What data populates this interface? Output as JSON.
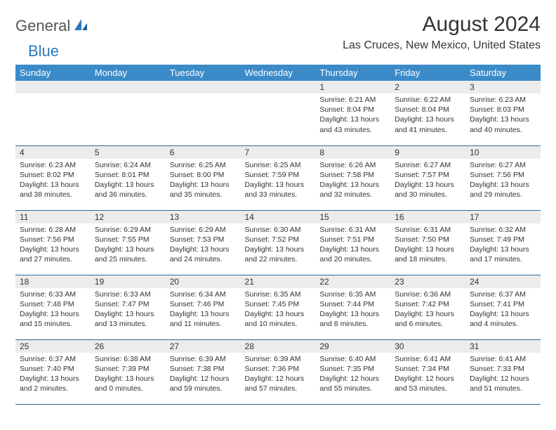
{
  "logo": {
    "part1": "General",
    "part2": "Blue"
  },
  "title": "August 2024",
  "location": "Las Cruces, New Mexico, United States",
  "colors": {
    "header_bg": "#3b8bc9",
    "header_text": "#ffffff",
    "daynum_bg": "#ececec",
    "cell_border": "#2a6aa0",
    "text": "#333333",
    "logo_gray": "#555555",
    "logo_blue": "#2a7abf"
  },
  "daysOfWeek": [
    "Sunday",
    "Monday",
    "Tuesday",
    "Wednesday",
    "Thursday",
    "Friday",
    "Saturday"
  ],
  "weeks": [
    [
      {
        "empty": true
      },
      {
        "empty": true
      },
      {
        "empty": true
      },
      {
        "empty": true
      },
      {
        "num": "1",
        "sunrise": "Sunrise: 6:21 AM",
        "sunset": "Sunset: 8:04 PM",
        "day1": "Daylight: 13 hours",
        "day2": "and 43 minutes."
      },
      {
        "num": "2",
        "sunrise": "Sunrise: 6:22 AM",
        "sunset": "Sunset: 8:04 PM",
        "day1": "Daylight: 13 hours",
        "day2": "and 41 minutes."
      },
      {
        "num": "3",
        "sunrise": "Sunrise: 6:23 AM",
        "sunset": "Sunset: 8:03 PM",
        "day1": "Daylight: 13 hours",
        "day2": "and 40 minutes."
      }
    ],
    [
      {
        "num": "4",
        "sunrise": "Sunrise: 6:23 AM",
        "sunset": "Sunset: 8:02 PM",
        "day1": "Daylight: 13 hours",
        "day2": "and 38 minutes."
      },
      {
        "num": "5",
        "sunrise": "Sunrise: 6:24 AM",
        "sunset": "Sunset: 8:01 PM",
        "day1": "Daylight: 13 hours",
        "day2": "and 36 minutes."
      },
      {
        "num": "6",
        "sunrise": "Sunrise: 6:25 AM",
        "sunset": "Sunset: 8:00 PM",
        "day1": "Daylight: 13 hours",
        "day2": "and 35 minutes."
      },
      {
        "num": "7",
        "sunrise": "Sunrise: 6:25 AM",
        "sunset": "Sunset: 7:59 PM",
        "day1": "Daylight: 13 hours",
        "day2": "and 33 minutes."
      },
      {
        "num": "8",
        "sunrise": "Sunrise: 6:26 AM",
        "sunset": "Sunset: 7:58 PM",
        "day1": "Daylight: 13 hours",
        "day2": "and 32 minutes."
      },
      {
        "num": "9",
        "sunrise": "Sunrise: 6:27 AM",
        "sunset": "Sunset: 7:57 PM",
        "day1": "Daylight: 13 hours",
        "day2": "and 30 minutes."
      },
      {
        "num": "10",
        "sunrise": "Sunrise: 6:27 AM",
        "sunset": "Sunset: 7:56 PM",
        "day1": "Daylight: 13 hours",
        "day2": "and 29 minutes."
      }
    ],
    [
      {
        "num": "11",
        "sunrise": "Sunrise: 6:28 AM",
        "sunset": "Sunset: 7:56 PM",
        "day1": "Daylight: 13 hours",
        "day2": "and 27 minutes."
      },
      {
        "num": "12",
        "sunrise": "Sunrise: 6:29 AM",
        "sunset": "Sunset: 7:55 PM",
        "day1": "Daylight: 13 hours",
        "day2": "and 25 minutes."
      },
      {
        "num": "13",
        "sunrise": "Sunrise: 6:29 AM",
        "sunset": "Sunset: 7:53 PM",
        "day1": "Daylight: 13 hours",
        "day2": "and 24 minutes."
      },
      {
        "num": "14",
        "sunrise": "Sunrise: 6:30 AM",
        "sunset": "Sunset: 7:52 PM",
        "day1": "Daylight: 13 hours",
        "day2": "and 22 minutes."
      },
      {
        "num": "15",
        "sunrise": "Sunrise: 6:31 AM",
        "sunset": "Sunset: 7:51 PM",
        "day1": "Daylight: 13 hours",
        "day2": "and 20 minutes."
      },
      {
        "num": "16",
        "sunrise": "Sunrise: 6:31 AM",
        "sunset": "Sunset: 7:50 PM",
        "day1": "Daylight: 13 hours",
        "day2": "and 18 minutes."
      },
      {
        "num": "17",
        "sunrise": "Sunrise: 6:32 AM",
        "sunset": "Sunset: 7:49 PM",
        "day1": "Daylight: 13 hours",
        "day2": "and 17 minutes."
      }
    ],
    [
      {
        "num": "18",
        "sunrise": "Sunrise: 6:33 AM",
        "sunset": "Sunset: 7:48 PM",
        "day1": "Daylight: 13 hours",
        "day2": "and 15 minutes."
      },
      {
        "num": "19",
        "sunrise": "Sunrise: 6:33 AM",
        "sunset": "Sunset: 7:47 PM",
        "day1": "Daylight: 13 hours",
        "day2": "and 13 minutes."
      },
      {
        "num": "20",
        "sunrise": "Sunrise: 6:34 AM",
        "sunset": "Sunset: 7:46 PM",
        "day1": "Daylight: 13 hours",
        "day2": "and 11 minutes."
      },
      {
        "num": "21",
        "sunrise": "Sunrise: 6:35 AM",
        "sunset": "Sunset: 7:45 PM",
        "day1": "Daylight: 13 hours",
        "day2": "and 10 minutes."
      },
      {
        "num": "22",
        "sunrise": "Sunrise: 6:35 AM",
        "sunset": "Sunset: 7:44 PM",
        "day1": "Daylight: 13 hours",
        "day2": "and 8 minutes."
      },
      {
        "num": "23",
        "sunrise": "Sunrise: 6:36 AM",
        "sunset": "Sunset: 7:42 PM",
        "day1": "Daylight: 13 hours",
        "day2": "and 6 minutes."
      },
      {
        "num": "24",
        "sunrise": "Sunrise: 6:37 AM",
        "sunset": "Sunset: 7:41 PM",
        "day1": "Daylight: 13 hours",
        "day2": "and 4 minutes."
      }
    ],
    [
      {
        "num": "25",
        "sunrise": "Sunrise: 6:37 AM",
        "sunset": "Sunset: 7:40 PM",
        "day1": "Daylight: 13 hours",
        "day2": "and 2 minutes."
      },
      {
        "num": "26",
        "sunrise": "Sunrise: 6:38 AM",
        "sunset": "Sunset: 7:39 PM",
        "day1": "Daylight: 13 hours",
        "day2": "and 0 minutes."
      },
      {
        "num": "27",
        "sunrise": "Sunrise: 6:39 AM",
        "sunset": "Sunset: 7:38 PM",
        "day1": "Daylight: 12 hours",
        "day2": "and 59 minutes."
      },
      {
        "num": "28",
        "sunrise": "Sunrise: 6:39 AM",
        "sunset": "Sunset: 7:36 PM",
        "day1": "Daylight: 12 hours",
        "day2": "and 57 minutes."
      },
      {
        "num": "29",
        "sunrise": "Sunrise: 6:40 AM",
        "sunset": "Sunset: 7:35 PM",
        "day1": "Daylight: 12 hours",
        "day2": "and 55 minutes."
      },
      {
        "num": "30",
        "sunrise": "Sunrise: 6:41 AM",
        "sunset": "Sunset: 7:34 PM",
        "day1": "Daylight: 12 hours",
        "day2": "and 53 minutes."
      },
      {
        "num": "31",
        "sunrise": "Sunrise: 6:41 AM",
        "sunset": "Sunset: 7:33 PM",
        "day1": "Daylight: 12 hours",
        "day2": "and 51 minutes."
      }
    ]
  ]
}
